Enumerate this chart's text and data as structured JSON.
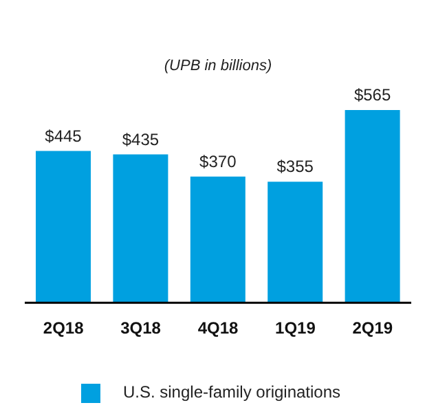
{
  "chart_data": {
    "type": "bar",
    "subtitle": "(UPB in billions)",
    "categories": [
      "2Q18",
      "3Q18",
      "4Q18",
      "1Q19",
      "2Q19"
    ],
    "series": [
      {
        "name": "U.S. single-family originations",
        "color": "#00a0e0",
        "values": [
          445,
          435,
          370,
          355,
          565
        ],
        "value_labels": [
          "$445",
          "$435",
          "$370",
          "$355",
          "$565"
        ]
      }
    ],
    "legend": "bottom",
    "grid": false
  }
}
